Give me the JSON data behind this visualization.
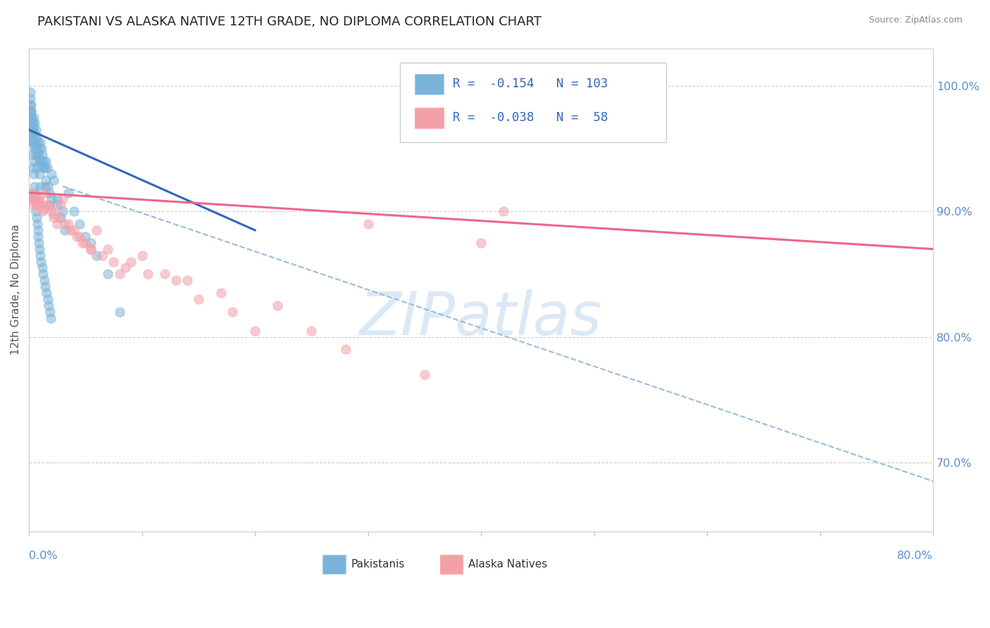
{
  "title": "PAKISTANI VS ALASKA NATIVE 12TH GRADE, NO DIPLOMA CORRELATION CHART",
  "source": "Source: ZipAtlas.com",
  "ylabel_label": "12th Grade, No Diploma",
  "xlim": [
    0.0,
    80.0
  ],
  "ylim": [
    64.5,
    103.0
  ],
  "yticks": [
    70.0,
    80.0,
    90.0,
    100.0
  ],
  "ytick_labels": [
    "70.0%",
    "80.0%",
    "90.0%",
    "100.0%"
  ],
  "pakistani_color": "#7AB3D9",
  "alaska_color": "#F4A0A8",
  "pak_blue_line_color": "#3366BB",
  "alaska_pink_line_color": "#EE6688",
  "dash_line_color": "#99BBDD",
  "pakistani_R": -0.154,
  "pakistani_N": 103,
  "alaska_R": -0.038,
  "alaska_N": 58,
  "grid_color": "#CCCCCC",
  "background_color": "#FFFFFF",
  "watermark_color": "#C8DCF0",
  "watermark_text": "ZIPatlas",
  "blue_line_x": [
    0.0,
    20.0
  ],
  "blue_line_y": [
    96.5,
    88.5
  ],
  "pink_line_x": [
    0.0,
    80.0
  ],
  "pink_line_y": [
    91.5,
    87.0
  ],
  "dash_line_x": [
    3.0,
    80.0
  ],
  "dash_line_y": [
    92.0,
    68.5
  ],
  "pak_x": [
    0.1,
    0.1,
    0.1,
    0.15,
    0.15,
    0.2,
    0.2,
    0.2,
    0.25,
    0.25,
    0.3,
    0.3,
    0.35,
    0.35,
    0.4,
    0.4,
    0.4,
    0.5,
    0.5,
    0.5,
    0.6,
    0.6,
    0.6,
    0.7,
    0.7,
    0.8,
    0.8,
    0.9,
    0.9,
    1.0,
    1.0,
    1.1,
    1.1,
    1.2,
    1.2,
    1.3,
    1.4,
    1.5,
    1.5,
    1.6,
    1.7,
    1.8,
    2.0,
    2.0,
    2.2,
    2.5,
    2.5,
    3.0,
    3.5,
    4.0,
    4.5,
    5.0,
    5.5,
    6.0,
    7.0,
    8.0,
    1.8,
    2.8,
    3.2,
    1.3,
    1.4,
    0.8,
    0.9,
    1.0,
    0.6,
    0.7,
    0.4,
    0.5,
    0.3,
    0.35,
    0.25,
    0.2,
    0.15,
    0.1,
    0.1,
    0.12,
    0.18,
    0.22,
    0.28,
    0.32,
    0.38,
    0.42,
    0.48,
    0.52,
    0.58,
    0.62,
    0.68,
    0.72,
    0.78,
    0.82,
    0.88,
    0.92,
    0.98,
    1.05,
    1.15,
    1.25,
    1.35,
    1.45,
    1.55,
    1.65,
    1.75,
    1.85,
    1.95
  ],
  "pak_y": [
    98.0,
    99.0,
    97.5,
    98.5,
    97.0,
    98.0,
    97.0,
    96.5,
    97.5,
    96.0,
    97.0,
    96.5,
    96.5,
    97.0,
    97.5,
    96.0,
    95.5,
    97.0,
    96.0,
    95.0,
    96.5,
    95.5,
    94.5,
    96.0,
    95.0,
    95.5,
    94.5,
    95.0,
    94.0,
    95.5,
    94.0,
    95.0,
    94.0,
    94.5,
    93.5,
    94.0,
    93.5,
    94.0,
    92.5,
    93.5,
    92.0,
    91.5,
    93.0,
    91.0,
    92.5,
    91.0,
    90.5,
    90.0,
    91.5,
    90.0,
    89.0,
    88.0,
    87.5,
    86.5,
    85.0,
    82.0,
    90.5,
    89.5,
    88.5,
    93.5,
    92.0,
    94.5,
    93.0,
    92.0,
    95.0,
    93.5,
    95.5,
    94.0,
    95.5,
    96.5,
    96.5,
    97.5,
    98.0,
    97.0,
    99.5,
    98.5,
    97.0,
    96.0,
    95.5,
    94.5,
    93.5,
    93.0,
    92.0,
    91.5,
    91.0,
    90.0,
    89.5,
    89.0,
    88.5,
    88.0,
    87.5,
    87.0,
    86.5,
    86.0,
    85.5,
    85.0,
    84.5,
    84.0,
    83.5,
    83.0,
    82.5,
    82.0,
    81.5
  ],
  "alaska_x": [
    0.1,
    0.2,
    0.3,
    0.4,
    0.5,
    0.6,
    0.7,
    0.8,
    0.9,
    1.0,
    1.2,
    1.5,
    1.8,
    2.0,
    2.2,
    2.5,
    2.8,
    3.0,
    3.5,
    4.0,
    4.5,
    5.0,
    5.5,
    6.0,
    7.0,
    8.0,
    9.0,
    10.0,
    12.0,
    14.0,
    15.0,
    18.0,
    20.0,
    22.0,
    25.0,
    28.0,
    30.0,
    35.0,
    40.0,
    42.0,
    0.35,
    0.65,
    0.95,
    1.3,
    1.6,
    2.2,
    2.7,
    3.2,
    3.7,
    4.2,
    4.7,
    5.5,
    6.5,
    7.5,
    8.5,
    10.5,
    13.0,
    17.0
  ],
  "alaska_y": [
    91.0,
    91.5,
    90.5,
    91.0,
    90.8,
    91.2,
    90.5,
    90.8,
    91.0,
    90.5,
    90.0,
    91.5,
    90.5,
    90.0,
    89.5,
    89.0,
    90.5,
    91.0,
    89.0,
    88.5,
    88.0,
    87.5,
    87.0,
    88.5,
    87.0,
    85.0,
    86.0,
    86.5,
    85.0,
    84.5,
    83.0,
    82.0,
    80.5,
    82.5,
    80.5,
    79.0,
    89.0,
    77.0,
    87.5,
    90.0,
    91.0,
    90.5,
    90.8,
    90.2,
    90.5,
    89.8,
    89.5,
    89.0,
    88.5,
    88.0,
    87.5,
    87.0,
    86.5,
    86.0,
    85.5,
    85.0,
    84.5,
    83.5
  ]
}
